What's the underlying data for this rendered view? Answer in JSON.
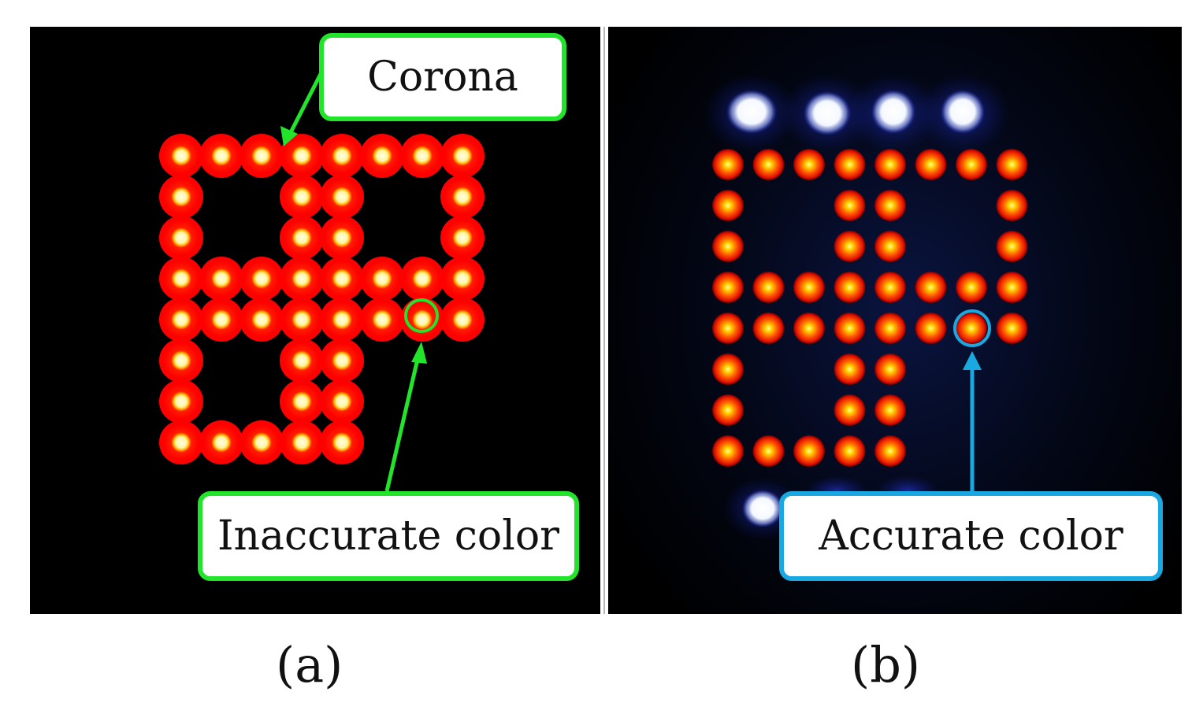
{
  "panel_a": {
    "callout_corona": "Corona",
    "callout_color": "Inaccurate color",
    "caption": "(a)"
  },
  "panel_b": {
    "callout_color": "Accurate color",
    "caption": "(b)"
  },
  "colors": {
    "green_callout": "#22e42a",
    "blue_callout": "#1aa8e0",
    "led_red": "#ff1a00",
    "led_core": "#ffffc8"
  },
  "icons": {
    "corona_arrow": "arrow-icon",
    "inaccurate_arrow": "arrow-icon",
    "accurate_arrow": "arrow-icon"
  }
}
